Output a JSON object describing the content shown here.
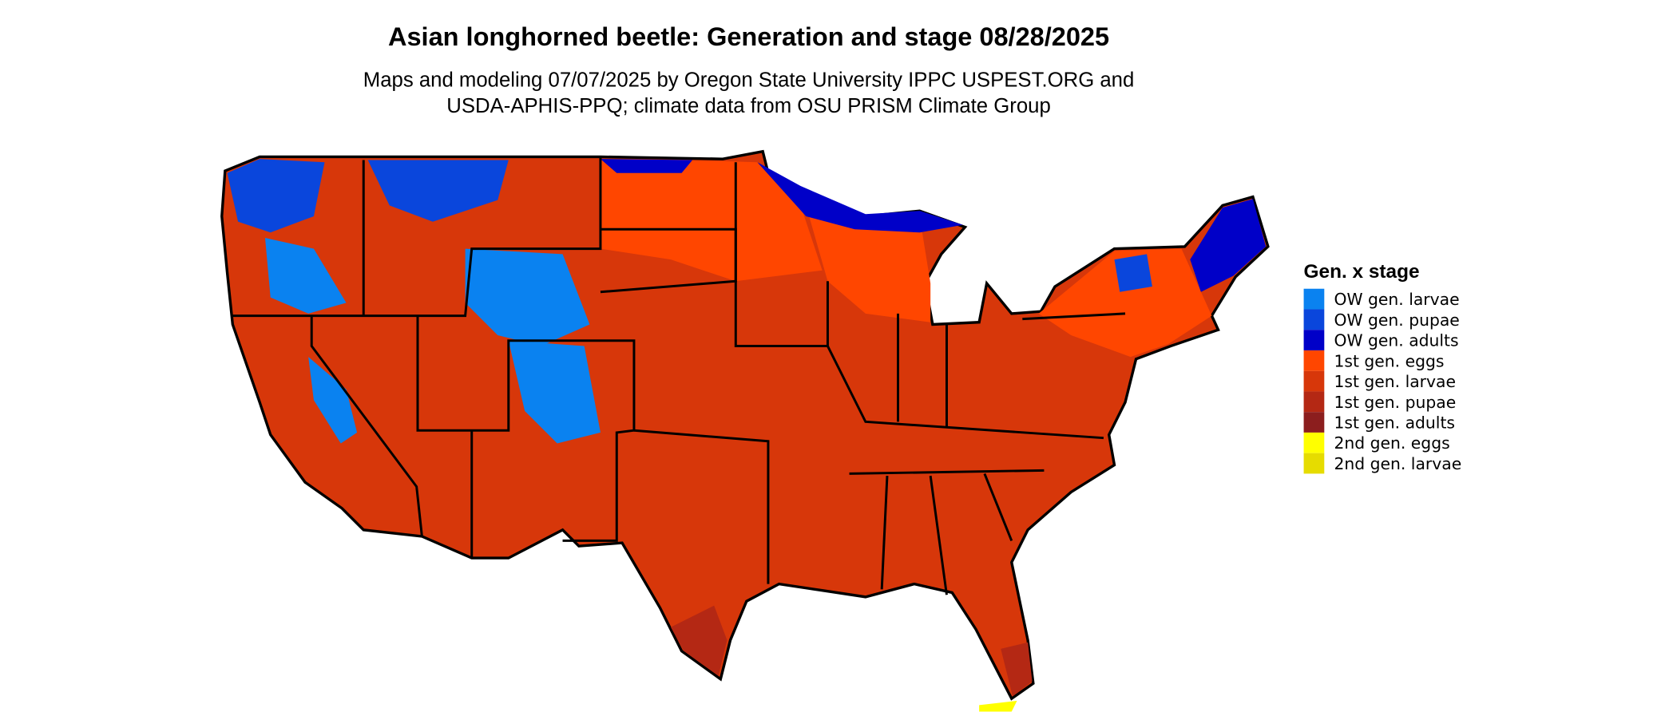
{
  "map": {
    "title": "Asian longhorned beetle: Generation and stage 08/28/2025",
    "subtitle": [
      "Maps and modeling 07/07/2025 by Oregon State University IPPC USPEST.ORG and",
      "USDA-APHIS-PPQ; climate data from OSU PRISM Climate Group"
    ],
    "legend": {
      "title": "Gen. x stage",
      "items": [
        {
          "label": "OW gen. larvae",
          "color": "#0a82f0"
        },
        {
          "label": "OW gen. pupae",
          "color": "#0a46dc"
        },
        {
          "label": "OW gen. adults",
          "color": "#0000c8"
        },
        {
          "label": "1st gen. eggs",
          "color": "#ff4600"
        },
        {
          "label": "1st gen. larvae",
          "color": "#d7370a"
        },
        {
          "label": "1st gen. pupae",
          "color": "#b42814"
        },
        {
          "label": "1st gen. adults",
          "color": "#8c1e1e"
        },
        {
          "label": "2nd gen. eggs",
          "color": "#ffff00"
        },
        {
          "label": "2nd gen. larvae",
          "color": "#e6dc00"
        }
      ]
    }
  }
}
